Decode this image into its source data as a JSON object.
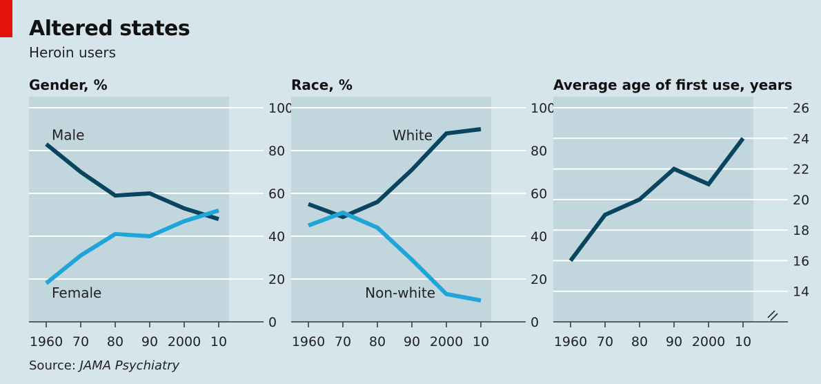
{
  "header": {
    "title": "Altered states",
    "subtitle": "Heroin users"
  },
  "footer": {
    "source_prefix": "Source: ",
    "source_name": "JAMA Psychiatry"
  },
  "colors": {
    "background": "#d6e5eb",
    "plot_background": "#c2d6de",
    "dark_series": "#0a4560",
    "light_series": "#1fa5d8",
    "accent_red": "#e3120b"
  },
  "chart_data": [
    {
      "type": "line",
      "title": "Gender, %",
      "x": [
        "1960",
        "70",
        "80",
        "90",
        "2000",
        "10"
      ],
      "ylim": [
        0,
        100
      ],
      "yticks": [
        "0",
        "20",
        "40",
        "60",
        "80",
        "100"
      ],
      "grid": true,
      "series": [
        {
          "name": "Male",
          "color": "dark_series",
          "values": [
            83,
            70,
            59,
            60,
            53,
            48
          ]
        },
        {
          "name": "Female",
          "color": "light_series",
          "values": [
            18,
            31,
            41,
            40,
            47,
            52
          ]
        }
      ]
    },
    {
      "type": "line",
      "title": "Race, %",
      "x": [
        "1960",
        "70",
        "80",
        "90",
        "2000",
        "10"
      ],
      "ylim": [
        0,
        100
      ],
      "yticks": [
        "0",
        "20",
        "40",
        "60",
        "80",
        "100"
      ],
      "grid": true,
      "series": [
        {
          "name": "White",
          "color": "dark_series",
          "values": [
            55,
            49,
            56,
            71,
            88,
            90
          ]
        },
        {
          "name": "Non-white",
          "color": "light_series",
          "values": [
            45,
            51,
            44,
            29,
            13,
            10
          ]
        }
      ]
    },
    {
      "type": "line",
      "title": "Average age of first use, years",
      "x": [
        "1960",
        "70",
        "80",
        "90",
        "2000",
        "10"
      ],
      "ylim": [
        12,
        26
      ],
      "yticks": [
        "14",
        "16",
        "18",
        "20",
        "22",
        "24",
        "26"
      ],
      "axis_break": true,
      "grid": true,
      "series": [
        {
          "color": "dark_series",
          "values": [
            16,
            19,
            20,
            22,
            21,
            24
          ]
        }
      ]
    }
  ]
}
